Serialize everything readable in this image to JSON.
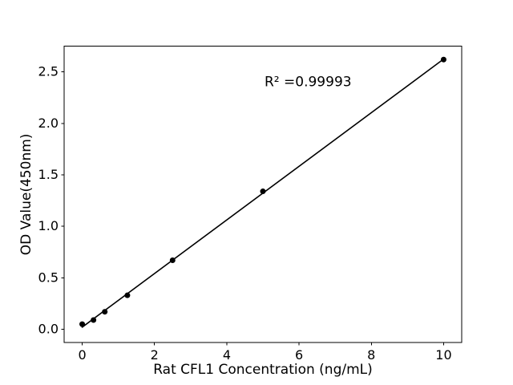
{
  "chart_data": {
    "type": "scatter",
    "title": "",
    "xlabel": "Rat CFL1 Concentration (ng/mL)",
    "ylabel": "OD Value(450nm)",
    "annotation": "R² =0.99993",
    "x": [
      0,
      0.3125,
      0.625,
      1.25,
      2.5,
      5,
      10
    ],
    "y": [
      0.05,
      0.09,
      0.17,
      0.33,
      0.67,
      1.34,
      2.62
    ],
    "fit_line": true,
    "xlim": [
      -0.5,
      10.5
    ],
    "ylim": [
      -0.13,
      2.75
    ],
    "xticks": {
      "values": [
        0,
        2,
        4,
        6,
        8,
        10
      ],
      "labels": [
        "0",
        "2",
        "4",
        "6",
        "8",
        "10"
      ]
    },
    "yticks": {
      "values": [
        0,
        0.5,
        1,
        1.5,
        2,
        2.5
      ],
      "labels": [
        "0.0",
        "0.5",
        "1.0",
        "1.5",
        "2.0",
        "2.5"
      ]
    },
    "grid": false,
    "legend": false,
    "colors": {
      "marker": "#000000",
      "line": "#000000",
      "text": "#000000",
      "frame": "#000000",
      "background": "#ffffff"
    }
  }
}
